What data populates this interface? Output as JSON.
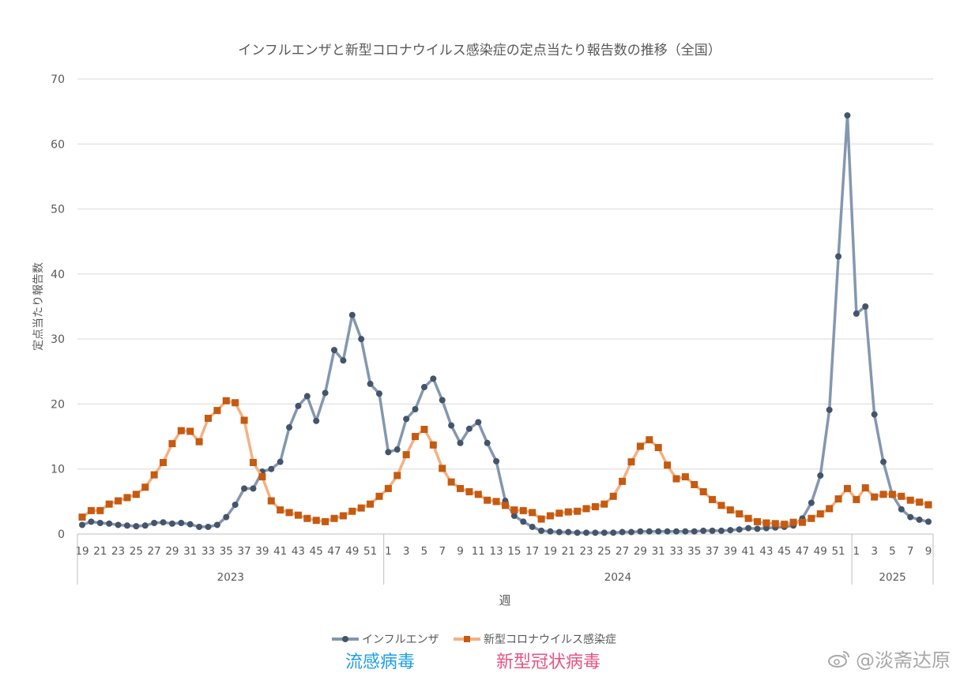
{
  "chart_data": {
    "type": "line",
    "title": "インフルエンザと新型コロナウイルス感染症の定点当たり報告数の推移（全国）",
    "xlabel": "週",
    "ylabel": "定点当たり報告数",
    "ylim": [
      0,
      70
    ],
    "yticks": [
      0,
      10,
      20,
      30,
      40,
      50,
      60,
      70
    ],
    "grid": true,
    "legend_position": "bottom",
    "x": [
      "2023-19",
      "2023-20",
      "2023-21",
      "2023-22",
      "2023-23",
      "2023-24",
      "2023-25",
      "2023-26",
      "2023-27",
      "2023-28",
      "2023-29",
      "2023-30",
      "2023-31",
      "2023-32",
      "2023-33",
      "2023-34",
      "2023-35",
      "2023-36",
      "2023-37",
      "2023-38",
      "2023-39",
      "2023-40",
      "2023-41",
      "2023-42",
      "2023-43",
      "2023-44",
      "2023-45",
      "2023-46",
      "2023-47",
      "2023-48",
      "2023-49",
      "2023-50",
      "2023-51",
      "2023-52",
      "2024-1",
      "2024-2",
      "2024-3",
      "2024-4",
      "2024-5",
      "2024-6",
      "2024-7",
      "2024-8",
      "2024-9",
      "2024-10",
      "2024-11",
      "2024-12",
      "2024-13",
      "2024-14",
      "2024-15",
      "2024-16",
      "2024-17",
      "2024-18",
      "2024-19",
      "2024-20",
      "2024-21",
      "2024-22",
      "2024-23",
      "2024-24",
      "2024-25",
      "2024-26",
      "2024-27",
      "2024-28",
      "2024-29",
      "2024-30",
      "2024-31",
      "2024-32",
      "2024-33",
      "2024-34",
      "2024-35",
      "2024-36",
      "2024-37",
      "2024-38",
      "2024-39",
      "2024-40",
      "2024-41",
      "2024-42",
      "2024-43",
      "2024-44",
      "2024-45",
      "2024-46",
      "2024-47",
      "2024-48",
      "2024-49",
      "2024-50",
      "2024-51",
      "2024-52",
      "2025-1",
      "2025-2",
      "2025-3",
      "2025-4",
      "2025-5",
      "2025-6",
      "2025-7",
      "2025-8",
      "2025-9"
    ],
    "tick_labels": [
      "19",
      "",
      "21",
      "",
      "23",
      "",
      "25",
      "",
      "27",
      "",
      "29",
      "",
      "31",
      "",
      "33",
      "",
      "35",
      "",
      "37",
      "",
      "39",
      "",
      "41",
      "",
      "43",
      "",
      "45",
      "",
      "47",
      "",
      "49",
      "",
      "51",
      "",
      "1",
      "",
      "3",
      "",
      "5",
      "",
      "7",
      "",
      "9",
      "",
      "11",
      "",
      "13",
      "",
      "15",
      "",
      "17",
      "",
      "19",
      "",
      "21",
      "",
      "23",
      "",
      "25",
      "",
      "27",
      "",
      "29",
      "",
      "31",
      "",
      "33",
      "",
      "35",
      "",
      "37",
      "",
      "39",
      "",
      "41",
      "",
      "43",
      "",
      "45",
      "",
      "47",
      "",
      "49",
      "",
      "51",
      "",
      "1",
      "",
      "3",
      "",
      "5",
      "",
      "7",
      "",
      "9"
    ],
    "year_groups": [
      {
        "label": "2023",
        "start": 0,
        "end": 33
      },
      {
        "label": "2024",
        "start": 34,
        "end": 85
      },
      {
        "label": "2025",
        "start": 86,
        "end": 94
      }
    ],
    "series": [
      {
        "name": "インフルエンザ",
        "line_color": "#8497b0",
        "marker_color": "#44546a",
        "marker": "circle",
        "values": [
          1.4,
          1.9,
          1.7,
          1.6,
          1.4,
          1.3,
          1.2,
          1.3,
          1.7,
          1.8,
          1.6,
          1.7,
          1.5,
          1.1,
          1.1,
          1.4,
          2.6,
          4.5,
          7.0,
          7.0,
          9.6,
          10.0,
          11.1,
          16.4,
          19.7,
          21.2,
          17.4,
          21.7,
          28.3,
          26.7,
          33.7,
          30.0,
          23.1,
          21.6,
          12.6,
          13.0,
          17.7,
          19.2,
          22.6,
          23.9,
          20.6,
          16.7,
          14.0,
          16.2,
          17.2,
          14.0,
          11.2,
          5.1,
          2.8,
          1.9,
          1.1,
          0.5,
          0.4,
          0.3,
          0.3,
          0.2,
          0.2,
          0.2,
          0.2,
          0.2,
          0.3,
          0.3,
          0.4,
          0.4,
          0.4,
          0.4,
          0.4,
          0.4,
          0.4,
          0.5,
          0.5,
          0.5,
          0.6,
          0.7,
          0.9,
          0.8,
          0.9,
          1.0,
          1.1,
          1.3,
          2.4,
          4.8,
          9.0,
          19.1,
          42.7,
          64.4,
          33.9,
          35.0,
          18.4,
          11.1,
          6.0,
          3.8,
          2.6,
          2.2,
          1.9
        ]
      },
      {
        "name": "新型コロナウイルス感染症",
        "line_color": "#f4b183",
        "marker_color": "#c55a11",
        "marker": "square",
        "values": [
          2.6,
          3.6,
          3.6,
          4.6,
          5.1,
          5.6,
          6.1,
          7.2,
          9.1,
          11.0,
          13.9,
          15.9,
          15.8,
          14.2,
          17.8,
          19.0,
          20.5,
          20.2,
          17.5,
          11.0,
          8.8,
          5.1,
          3.7,
          3.3,
          2.9,
          2.4,
          2.1,
          1.9,
          2.4,
          2.8,
          3.5,
          4.0,
          4.6,
          5.8,
          7.0,
          9.0,
          12.2,
          15.0,
          16.1,
          13.7,
          10.1,
          8.0,
          7.0,
          6.5,
          6.1,
          5.2,
          5.0,
          4.4,
          3.7,
          3.6,
          3.3,
          2.3,
          2.8,
          3.2,
          3.4,
          3.5,
          3.9,
          4.2,
          4.6,
          5.8,
          8.1,
          11.1,
          13.5,
          14.5,
          13.3,
          10.6,
          8.5,
          8.8,
          7.6,
          6.5,
          5.3,
          4.4,
          3.7,
          3.1,
          2.4,
          1.9,
          1.7,
          1.6,
          1.5,
          1.8,
          1.8,
          2.4,
          3.1,
          3.9,
          5.4,
          7.0,
          5.3,
          7.1,
          5.7,
          6.1,
          6.1,
          5.8,
          5.2,
          4.9,
          4.5
        ]
      }
    ]
  },
  "annotations": {
    "influenza_cn": "流感病毒",
    "covid_cn": "新型冠状病毒",
    "influenza_cn_color": "#1e9ee6",
    "covid_cn_color": "#e95380",
    "watermark": "@淡斋达原"
  }
}
